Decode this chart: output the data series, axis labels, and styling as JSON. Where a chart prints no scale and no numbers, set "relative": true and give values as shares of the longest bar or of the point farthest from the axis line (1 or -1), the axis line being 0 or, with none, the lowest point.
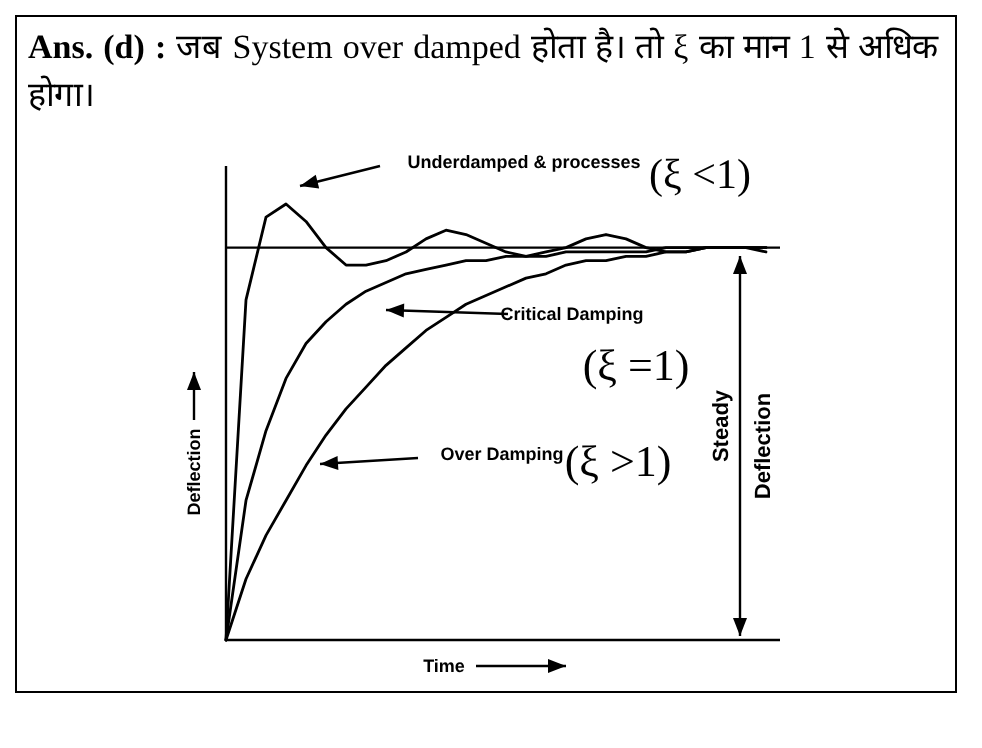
{
  "chart_data": {
    "type": "line",
    "relative": true,
    "title": "Ans. (d) : जब System over damped होता है। तो ξ का मान 1 से अधिक होगा।",
    "xlabel": "Time",
    "ylabel": "Deflection",
    "categories": [
      null,
      null,
      null,
      null,
      null,
      null,
      null,
      null,
      null,
      null,
      null,
      null,
      null,
      null,
      null,
      null,
      null,
      null,
      null,
      null,
      null,
      null,
      null,
      null,
      null,
      null,
      null,
      null
    ],
    "series": [
      {
        "color": "#000000",
        "values": [
          0,
          0.78,
          0.97,
          1,
          0.96,
          0.9,
          0.86,
          0.86,
          0.87,
          0.89,
          0.92,
          0.94,
          0.93,
          0.91,
          0.89,
          0.88,
          0.89,
          0.9,
          0.92,
          0.93,
          0.92,
          0.9,
          0.89,
          0.89,
          0.9,
          0.9,
          0.9,
          0.9
        ]
      },
      {
        "color": "#000000",
        "values": [
          0,
          0.32,
          0.48,
          0.6,
          0.68,
          0.73,
          0.77,
          0.8,
          0.82,
          0.84,
          0.85,
          0.86,
          0.87,
          0.87,
          0.88,
          0.88,
          0.88,
          0.89,
          0.89,
          0.89,
          0.89,
          0.89,
          0.9,
          0.9,
          0.9,
          0.9,
          0.9,
          0.9
        ]
      },
      {
        "color": "#000000",
        "values": [
          0,
          0.14,
          0.24,
          0.32,
          0.4,
          0.47,
          0.53,
          0.58,
          0.63,
          0.67,
          0.71,
          0.74,
          0.77,
          0.79,
          0.81,
          0.83,
          0.84,
          0.86,
          0.87,
          0.87,
          0.88,
          0.88,
          0.89,
          0.89,
          0.9,
          0.9,
          0.9,
          0.89
        ]
      }
    ],
    "ref_lines": [
      {
        "axis": "y",
        "value": 0.9,
        "color": "#000000"
      }
    ],
    "annotations": [
      "Underdamped & processes",
      "(ξ <1)",
      "Critical Damping",
      "(ξ =1)",
      "Over Damping",
      "(ξ >1)",
      "Steady",
      "Deflection"
    ],
    "line_style": "solid",
    "marker": "none"
  }
}
